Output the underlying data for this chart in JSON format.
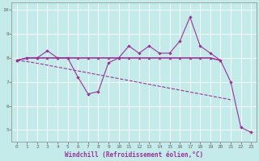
{
  "xlabel": "Windchill (Refroidissement éolien,°C)",
  "background_color": "#c4eaea",
  "line_color": "#993399",
  "grid_color": "#aad4d4",
  "x_hours": [
    0,
    1,
    2,
    3,
    4,
    5,
    6,
    7,
    8,
    9,
    10,
    11,
    12,
    13,
    14,
    15,
    16,
    17,
    18,
    19,
    20,
    21,
    22,
    23
  ],
  "line_main": [
    7.9,
    8.0,
    8.0,
    8.3,
    8.0,
    8.0,
    7.2,
    6.5,
    6.6,
    7.8,
    8.0,
    8.5,
    8.2,
    8.5,
    8.2,
    8.2,
    8.7,
    9.7,
    8.5,
    8.2,
    7.9,
    7.0,
    5.1,
    4.9
  ],
  "line_flat": [
    7.9,
    8.0,
    8.0,
    8.0,
    8.0,
    8.0,
    8.0,
    8.0,
    8.0,
    8.0,
    8.0,
    8.0,
    8.0,
    8.0,
    8.0,
    8.0,
    8.0,
    8.0,
    8.0,
    8.0,
    7.9,
    null,
    null,
    null
  ],
  "line_diag": [
    7.9,
    7.85,
    7.78,
    7.7,
    7.62,
    7.54,
    7.46,
    7.38,
    7.3,
    7.22,
    7.14,
    7.06,
    6.98,
    6.9,
    6.82,
    6.74,
    6.66,
    6.58,
    6.5,
    6.42,
    6.34,
    6.26,
    null,
    null
  ],
  "ylim": [
    4.5,
    10.3
  ],
  "xlim": [
    -0.5,
    23.5
  ],
  "yticks": [
    5,
    6,
    7,
    8,
    9,
    10
  ],
  "xticks": [
    0,
    1,
    2,
    3,
    4,
    5,
    6,
    7,
    8,
    9,
    10,
    11,
    12,
    13,
    14,
    15,
    16,
    17,
    18,
    19,
    20,
    21,
    22,
    23
  ],
  "tick_fontsize": 4.5,
  "xlabel_fontsize": 5.5
}
